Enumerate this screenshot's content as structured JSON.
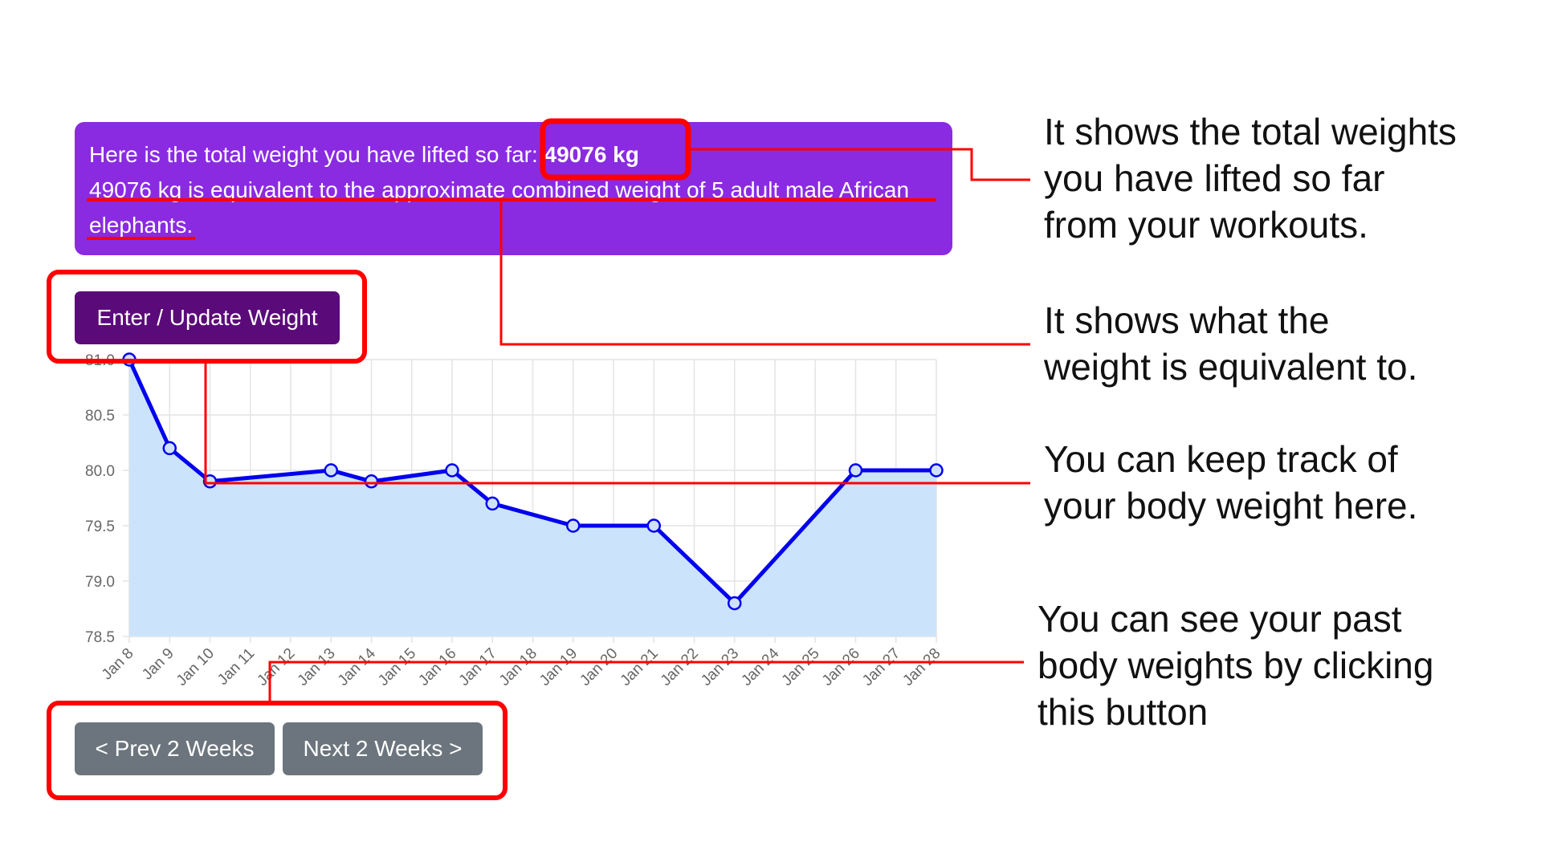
{
  "banner": {
    "total_prefix": "Here is the total weight you have lifted so far:",
    "total_value": "49076 kg",
    "equivalent_text": "49076 kg is equivalent to the approximate combined weight of 5 adult male African elephants."
  },
  "buttons": {
    "enter_update": "Enter / Update Weight",
    "prev": "< Prev 2 Weeks",
    "next": "Next 2 Weeks >"
  },
  "callouts": {
    "total": "It shows the total weights\nyou have lifted so far\nfrom your workouts.",
    "equivalent": "It shows what the\nweight is equivalent to.",
    "track": "You can keep track of\nyour body weight here.",
    "past": "You can see your past\nbody weights by clicking\nthis button"
  },
  "colors": {
    "banner": "#8a2be2",
    "enter_button": "#5b0a7a",
    "nav_button": "#6c757d",
    "line": "#0000ee",
    "fill": "#cce4fb",
    "highlight": "#ff0000"
  },
  "chart_data": {
    "type": "area",
    "x": [
      "Jan 8",
      "Jan 9",
      "Jan 10",
      "Jan 11",
      "Jan 12",
      "Jan 13",
      "Jan 14",
      "Jan 15",
      "Jan 16",
      "Jan 17",
      "Jan 18",
      "Jan 19",
      "Jan 20",
      "Jan 21",
      "Jan 22",
      "Jan 23",
      "Jan 24",
      "Jan 25",
      "Jan 26",
      "Jan 27",
      "Jan 28"
    ],
    "series": [
      {
        "values": [
          81.0,
          80.2,
          79.9,
          null,
          null,
          80.0,
          79.9,
          null,
          80.0,
          79.7,
          null,
          79.5,
          null,
          79.5,
          null,
          78.8,
          null,
          null,
          80.0,
          null,
          80.0
        ]
      }
    ],
    "yticks": [
      81.0,
      80.5,
      80.0,
      79.5,
      79.0,
      78.5
    ],
    "ylim": [
      78.5,
      81.0
    ],
    "grid": true
  }
}
